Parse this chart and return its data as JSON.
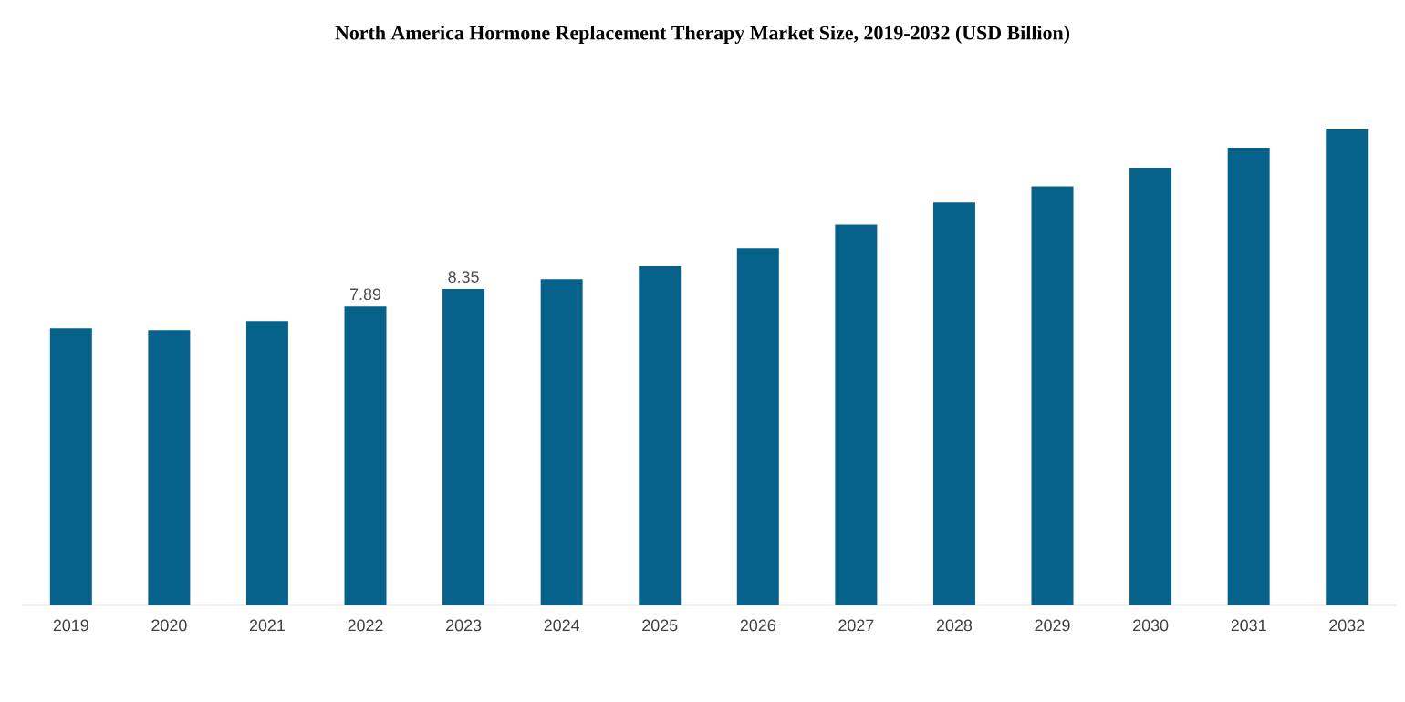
{
  "chart_data": {
    "type": "bar",
    "title": "North America Hormone Replacement Therapy Market Size, 2019-2032 (USD Billion)",
    "categories": [
      "2019",
      "2020",
      "2021",
      "2022",
      "2023",
      "2024",
      "2025",
      "2026",
      "2027",
      "2028",
      "2029",
      "2030",
      "2031",
      "2032"
    ],
    "values": [
      7.31,
      7.26,
      7.5,
      7.89,
      8.35,
      8.61,
      8.95,
      9.43,
      10.05,
      10.63,
      11.06,
      11.55,
      12.08,
      12.56
    ],
    "value_labels": [
      null,
      null,
      null,
      "7.89",
      "8.35",
      null,
      null,
      null,
      null,
      null,
      null,
      null,
      null,
      null
    ],
    "color": "#06628a",
    "tick_labels": "x"
  }
}
